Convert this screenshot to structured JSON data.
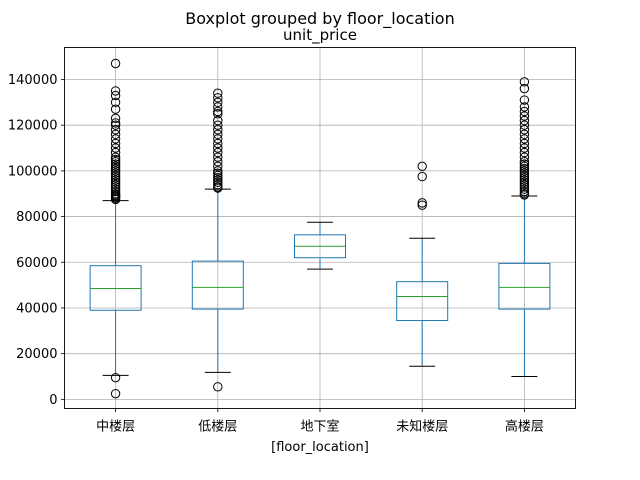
{
  "chart_data": {
    "type": "boxplot",
    "suptitle": "Boxplot grouped by floor_location",
    "title": "unit_price",
    "xlabel": "[floor_location]",
    "ylabel": "",
    "ylim": [
      -4000,
      154000
    ],
    "yticks": [
      0,
      20000,
      40000,
      60000,
      80000,
      100000,
      120000,
      140000
    ],
    "ytick_labels": [
      "0",
      "20000",
      "40000",
      "60000",
      "80000",
      "100000",
      "120000",
      "140000"
    ],
    "grid": true,
    "colors": {
      "box": "#1f77b4",
      "median": "#2ca02c",
      "whisker": "#1f77b4",
      "cap": "#000000",
      "flier": "#000000",
      "grid": "#b0b0b0"
    },
    "categories": [
      "中楼层",
      "低楼层",
      "地下室",
      "未知楼层",
      "高楼层"
    ],
    "boxes": [
      {
        "label": "中楼层",
        "whislo": 10500,
        "q1": 39000,
        "med": 48500,
        "q3": 58500,
        "whishi": 87000,
        "fliers": [
          2500,
          9500,
          87500,
          88000,
          88500,
          89000,
          89500,
          90000,
          91000,
          92000,
          93000,
          94000,
          95000,
          96000,
          97000,
          98000,
          99000,
          100000,
          101000,
          102000,
          103000,
          104000,
          105000,
          106000,
          108000,
          110000,
          112000,
          114000,
          116000,
          118000,
          120000,
          121000,
          123000,
          127000,
          130000,
          133000,
          135000,
          147000
        ]
      },
      {
        "label": "低楼层",
        "whislo": 11800,
        "q1": 39500,
        "med": 49000,
        "q3": 60500,
        "whishi": 92000,
        "fliers": [
          5500,
          92500,
          93000,
          94000,
          95000,
          96000,
          97000,
          98000,
          99000,
          100000,
          102000,
          104000,
          106000,
          108000,
          110000,
          112000,
          114000,
          116000,
          118000,
          120000,
          122000,
          125000,
          126000,
          128000,
          130000,
          132000,
          134000
        ]
      },
      {
        "label": "地下室",
        "whislo": 57000,
        "q1": 62000,
        "med": 67000,
        "q3": 72000,
        "whishi": 77500,
        "fliers": []
      },
      {
        "label": "未知楼层",
        "whislo": 14500,
        "q1": 34500,
        "med": 45000,
        "q3": 51500,
        "whishi": 70500,
        "fliers": [
          85000,
          86000,
          97500,
          102000
        ]
      },
      {
        "label": "高楼层",
        "whislo": 10000,
        "q1": 39500,
        "med": 49000,
        "q3": 59500,
        "whishi": 89000,
        "fliers": [
          89500,
          90000,
          91000,
          92000,
          93000,
          94000,
          95000,
          96000,
          97000,
          98000,
          99000,
          100000,
          101000,
          102000,
          103000,
          104000,
          106000,
          108000,
          110000,
          112000,
          114000,
          116000,
          118000,
          120000,
          122000,
          124000,
          126000,
          128000,
          131000,
          136000,
          139000
        ]
      }
    ]
  }
}
